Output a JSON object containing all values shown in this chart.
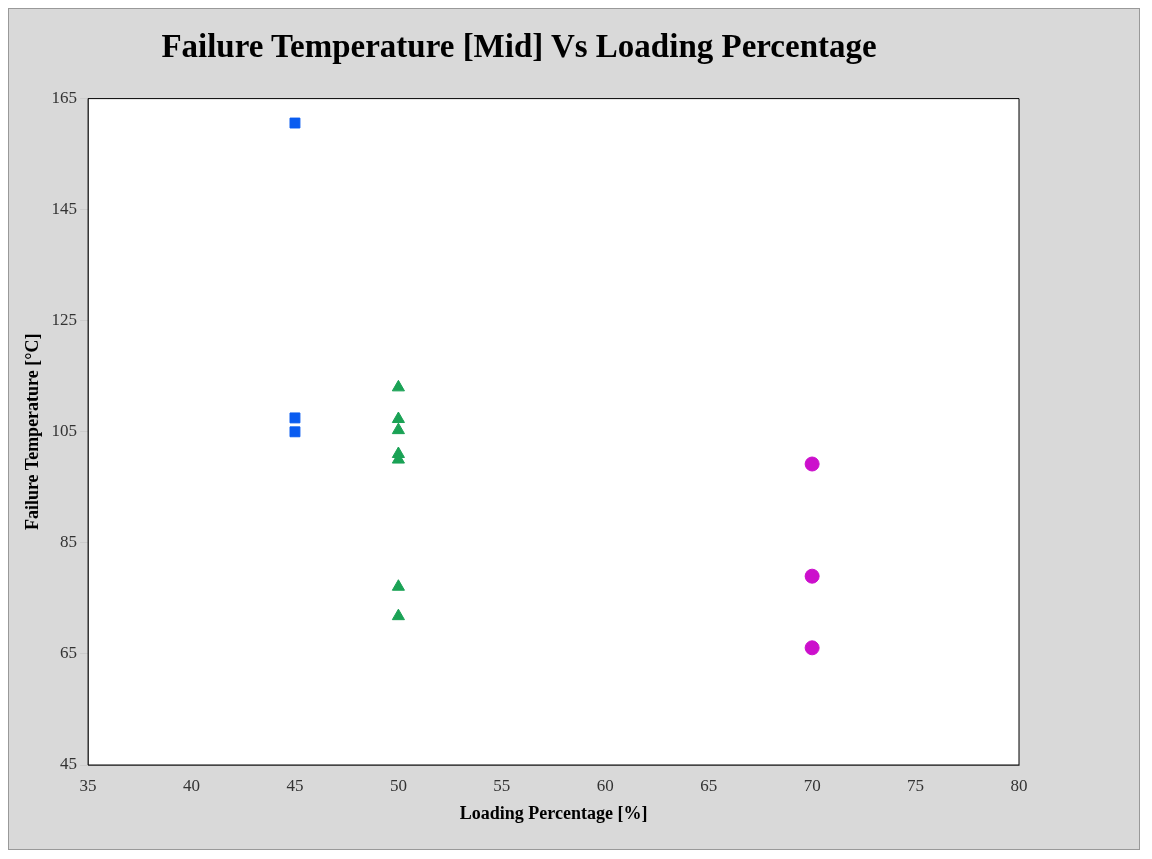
{
  "chart_data": {
    "type": "scatter",
    "title": "Failure Temperature [Mid] Vs Loading Percentage",
    "xlabel": "Loading Percentage [%]",
    "ylabel": "Failure Temperature [°C]",
    "xlim": [
      35,
      80
    ],
    "xticks": [
      35,
      40,
      45,
      50,
      55,
      60,
      65,
      70,
      75,
      80
    ],
    "ylim": [
      45,
      165
    ],
    "yticks": [
      45,
      65,
      85,
      105,
      125,
      145,
      165
    ],
    "grid": false,
    "legend": false,
    "series": [
      {
        "color": "#0a5cf0",
        "marker": "square",
        "x": [
          45,
          45,
          45
        ],
        "values": [
          160.6,
          107.5,
          105
        ]
      },
      {
        "color": "#1aa255",
        "marker": "triangle",
        "x": [
          50,
          50,
          50,
          50,
          50,
          50,
          50
        ],
        "values": [
          113,
          107.3,
          105.3,
          101,
          100,
          77.1,
          71.8
        ]
      },
      {
        "color": "#cc0fcc",
        "marker": "circle",
        "x": [
          70,
          70,
          70
        ],
        "values": [
          99.2,
          79,
          66.1
        ]
      }
    ]
  }
}
